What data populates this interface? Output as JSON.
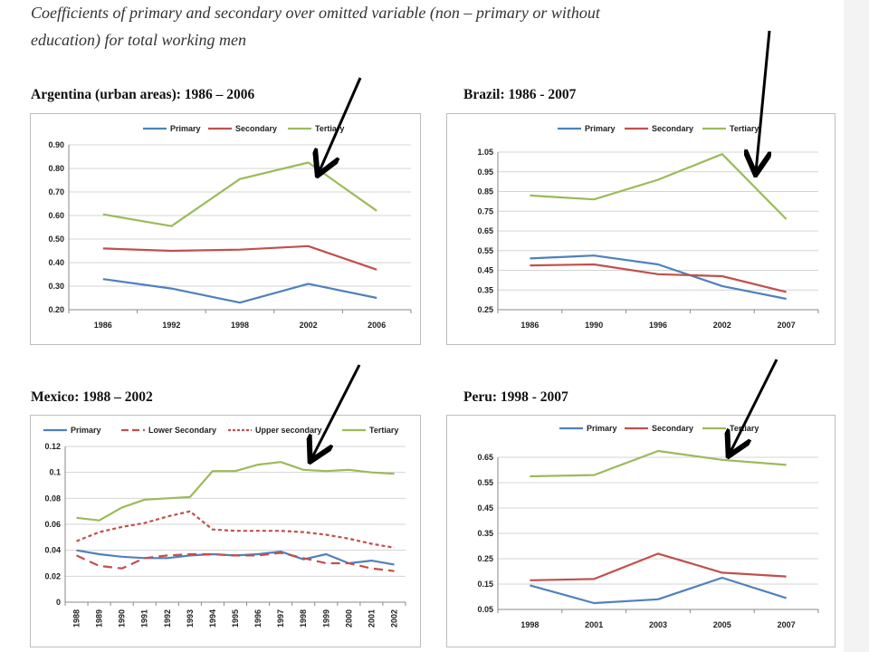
{
  "page": {
    "heading_line1": "Coefficients of primary and secondary over omitted variable (non – primary or without",
    "heading_line2": "education) for total working men"
  },
  "colors": {
    "primary": "#4f81bd",
    "secondary": "#c0504d",
    "tertiary": "#9bbb59",
    "arrow": "#000000"
  },
  "chart_data": [
    {
      "type": "line",
      "title": "Argentina (urban areas): 1986 – 2006",
      "categories": [
        "1986",
        "1992",
        "1998",
        "2002",
        "2006"
      ],
      "ylim": [
        0.2,
        0.9
      ],
      "yticks": [
        "0.20",
        "0.30",
        "0.40",
        "0.50",
        "0.60",
        "0.70",
        "0.80",
        "0.90"
      ],
      "legend": "top",
      "series": [
        {
          "name": "Primary",
          "color": "#4f81bd",
          "values": [
            0.33,
            0.29,
            0.23,
            0.31,
            0.25
          ]
        },
        {
          "name": "Secondary",
          "color": "#c0504d",
          "values": [
            0.46,
            0.45,
            0.455,
            0.47,
            0.37
          ]
        },
        {
          "name": "Tertiary",
          "color": "#9bbb59",
          "values": [
            0.605,
            0.555,
            0.755,
            0.825,
            0.62
          ]
        }
      ]
    },
    {
      "type": "line",
      "title": "Brazil: 1986 - 2007",
      "categories": [
        "1986",
        "1990",
        "1996",
        "2002",
        "2007"
      ],
      "ylim": [
        0.25,
        1.05
      ],
      "yticks": [
        "0.25",
        "0.35",
        "0.45",
        "0.55",
        "0.65",
        "0.75",
        "0.85",
        "0.95",
        "1.05"
      ],
      "legend": "top",
      "series": [
        {
          "name": "Primary",
          "color": "#4f81bd",
          "values": [
            0.51,
            0.525,
            0.48,
            0.37,
            0.305
          ]
        },
        {
          "name": "Secondary",
          "color": "#c0504d",
          "values": [
            0.475,
            0.48,
            0.43,
            0.42,
            0.34
          ]
        },
        {
          "name": "Tertiary",
          "color": "#9bbb59",
          "values": [
            0.83,
            0.81,
            0.91,
            1.04,
            0.71
          ]
        }
      ]
    },
    {
      "type": "line",
      "title": "Mexico: 1988 – 2002",
      "categories": [
        "1988",
        "1989",
        "1990",
        "1991",
        "1992",
        "1993",
        "1994",
        "1995",
        "1996",
        "1997",
        "1998",
        "1999",
        "2000",
        "2001",
        "2002"
      ],
      "ylim": [
        0,
        0.12
      ],
      "yticks": [
        "0",
        "0.02",
        "0.04",
        "0.06",
        "0.08",
        "0.1",
        "0.12"
      ],
      "legend": "top",
      "series": [
        {
          "name": "Primary",
          "color": "#4f81bd",
          "dash": "solid",
          "values": [
            0.04,
            0.037,
            0.035,
            0.034,
            0.034,
            0.036,
            0.037,
            0.036,
            0.037,
            0.039,
            0.033,
            0.037,
            0.03,
            0.032,
            0.029
          ]
        },
        {
          "name": "Lower Secondary",
          "color": "#c0504d",
          "dash": "long",
          "values": [
            0.036,
            0.028,
            0.026,
            0.034,
            0.036,
            0.037,
            0.037,
            0.036,
            0.036,
            0.038,
            0.034,
            0.03,
            0.03,
            0.026,
            0.024
          ]
        },
        {
          "name": "Upper secondary",
          "color": "#c0504d",
          "dash": "short",
          "values": [
            0.047,
            0.054,
            0.058,
            0.061,
            0.066,
            0.07,
            0.056,
            0.055,
            0.055,
            0.055,
            0.054,
            0.052,
            0.049,
            0.045,
            0.042
          ]
        },
        {
          "name": "Tertiary",
          "color": "#9bbb59",
          "dash": "solid",
          "values": [
            0.065,
            0.063,
            0.073,
            0.079,
            0.08,
            0.081,
            0.101,
            0.101,
            0.106,
            0.108,
            0.102,
            0.101,
            0.102,
            0.1,
            0.099
          ]
        }
      ]
    },
    {
      "type": "line",
      "title": "Peru: 1998 - 2007",
      "categories": [
        "1998",
        "2001",
        "2003",
        "2005",
        "2007"
      ],
      "ylim": [
        0.05,
        0.65
      ],
      "yticks": [
        "0.05",
        "0.15",
        "0.25",
        "0.35",
        "0.45",
        "0.55",
        "0.65"
      ],
      "legend": "top",
      "series": [
        {
          "name": "Primary",
          "color": "#4f81bd",
          "values": [
            0.145,
            0.075,
            0.09,
            0.175,
            0.095
          ]
        },
        {
          "name": "Secondary",
          "color": "#c0504d",
          "values": [
            0.165,
            0.17,
            0.27,
            0.195,
            0.18
          ]
        },
        {
          "name": "Tertiary",
          "color": "#9bbb59",
          "values": [
            0.575,
            0.58,
            0.675,
            0.64,
            0.62
          ]
        }
      ]
    }
  ]
}
